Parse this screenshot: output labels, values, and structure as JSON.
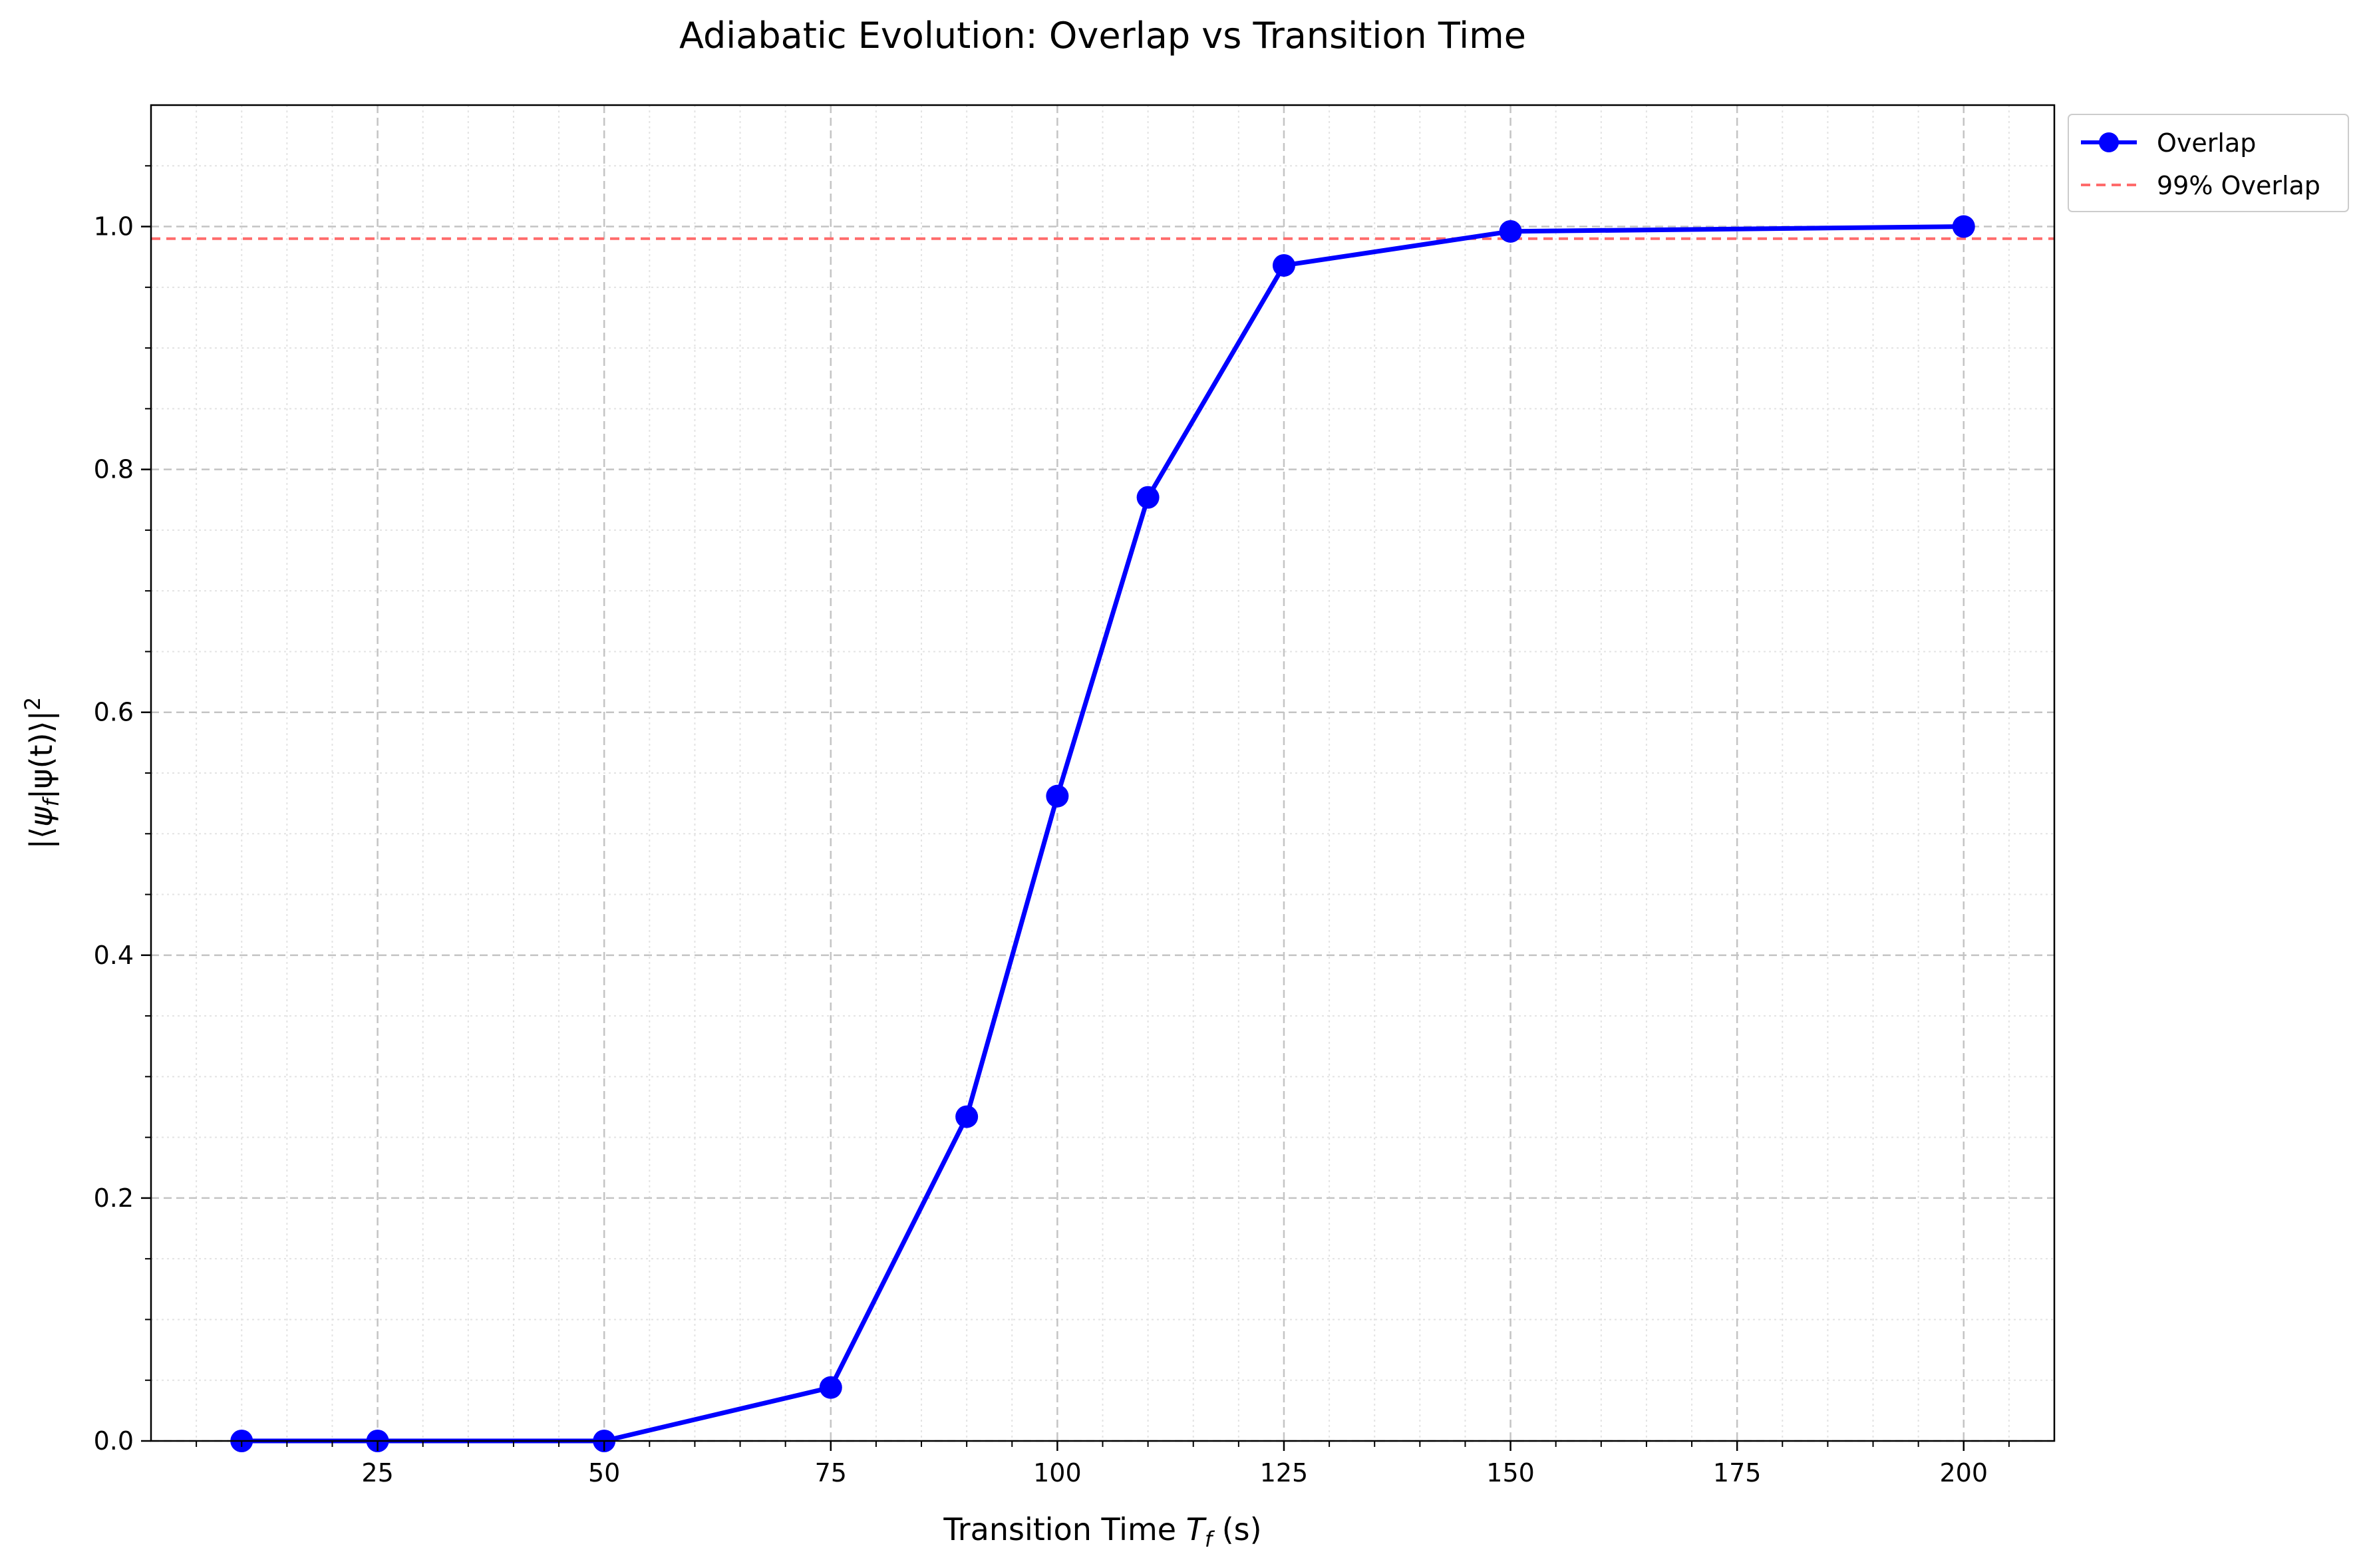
{
  "chart_data": {
    "type": "line",
    "title": "Adiabatic Evolution: Overlap vs Transition Time",
    "xlabel": "Transition Time T_f (s)",
    "xlabel_parts": {
      "main": "Transition Time ",
      "var": "T",
      "sub": "f",
      "unit": " (s)"
    },
    "ylabel": "|⟨ψ_f|ψ(t)⟩|²",
    "ylabel_parts": {
      "open": "|⟨",
      "var": "ψ",
      "sub": "f",
      "mid": "|ψ(t)⟩|",
      "sup": "2"
    },
    "xlim": [
      0,
      210
    ],
    "ylim": [
      0.0,
      1.1
    ],
    "x_ticks": [
      25,
      50,
      75,
      100,
      125,
      150,
      175,
      200
    ],
    "x_tick_labels": [
      "25",
      "50",
      "75",
      "100",
      "125",
      "150",
      "175",
      "200"
    ],
    "y_ticks": [
      0.0,
      0.2,
      0.4,
      0.6,
      0.8,
      1.0
    ],
    "y_tick_labels": [
      "0.0",
      "0.2",
      "0.4",
      "0.6",
      "0.8",
      "1.0"
    ],
    "grid": {
      "major": true,
      "minor": true,
      "style": "dashed"
    },
    "legend_position": "outside-top-right",
    "series": [
      {
        "name": "Overlap",
        "color": "#0000ff",
        "marker": "circle",
        "x": [
          10,
          25,
          50,
          75,
          90,
          100,
          110,
          125,
          150,
          200
        ],
        "y": [
          0.0,
          0.0,
          0.0,
          0.044,
          0.267,
          0.531,
          0.777,
          0.968,
          0.996,
          1.0
        ]
      }
    ],
    "reference_lines": [
      {
        "name": "99% Overlap",
        "orientation": "horizontal",
        "y": 0.99,
        "color": "#ff6b6b",
        "style": "dashed"
      }
    ]
  }
}
